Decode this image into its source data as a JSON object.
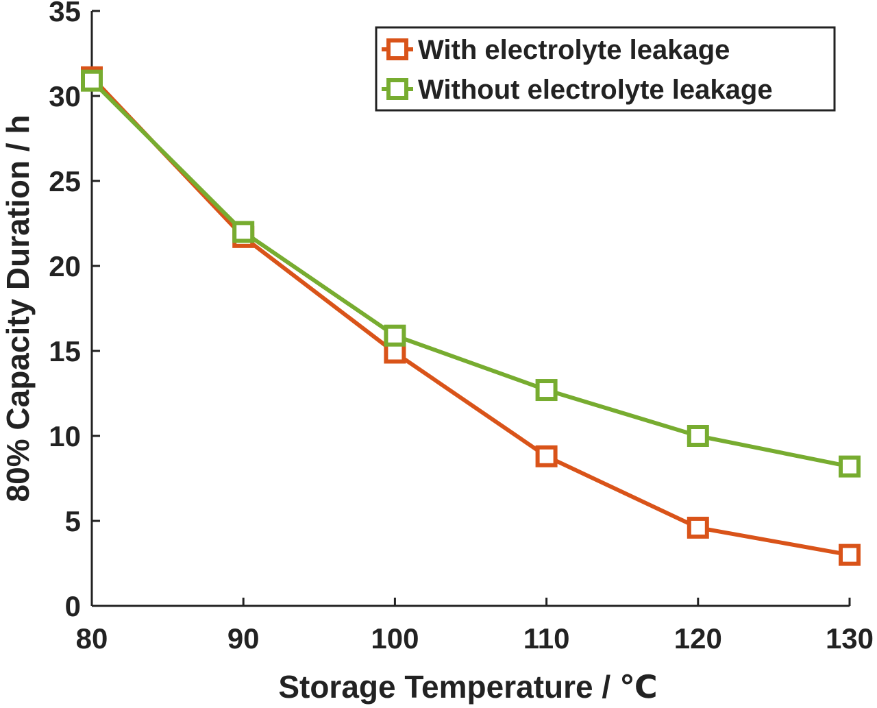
{
  "chart_data": {
    "type": "line",
    "title": "",
    "xlabel": "Storage Temperature / ℃",
    "ylabel": "80% Capacity Duration / h",
    "x": [
      80,
      90,
      100,
      110,
      120,
      130
    ],
    "xlim": [
      80,
      130
    ],
    "ylim": [
      0,
      35
    ],
    "xticks": [
      "80",
      "90",
      "100",
      "110",
      "120",
      "130"
    ],
    "yticks": [
      "0",
      "5",
      "10",
      "15",
      "20",
      "25",
      "30",
      "35"
    ],
    "grid": false,
    "legend_position": "top-right",
    "series": [
      {
        "name": "With electrolyte leakage",
        "color": "#d95319",
        "marker": "square",
        "values": [
          31.1,
          21.7,
          14.9,
          8.8,
          4.6,
          3.0
        ]
      },
      {
        "name": "Without electrolyte leakage",
        "color": "#77ac30",
        "marker": "square",
        "values": [
          30.9,
          22.0,
          15.9,
          12.7,
          10.0,
          8.2
        ]
      }
    ]
  }
}
